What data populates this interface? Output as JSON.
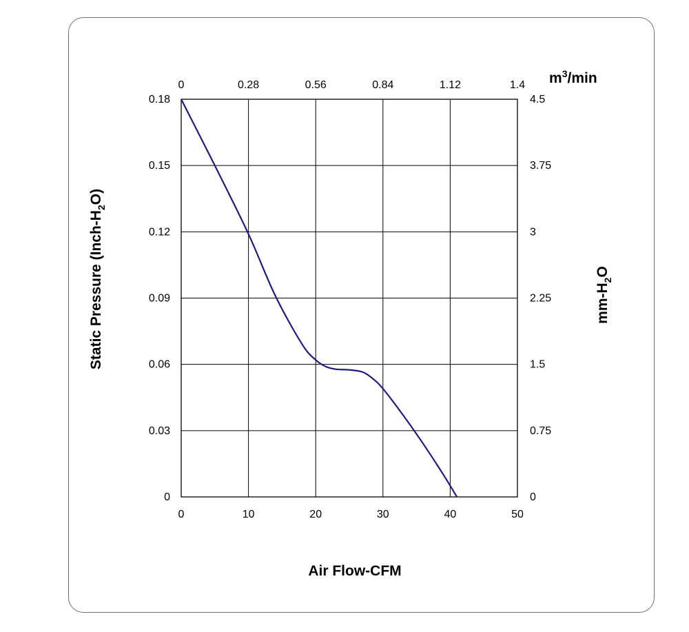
{
  "chart_data": {
    "type": "line",
    "xlabel": "Air Flow-CFM",
    "ylabel": "Static Pressure (Inch-H2O)",
    "top_axis_label": "m³/min",
    "right_axis_label": "mm-H2O",
    "xlim": [
      0,
      50
    ],
    "ylim": [
      0,
      0.18
    ],
    "x_ticks": [
      "0",
      "10",
      "20",
      "30",
      "40",
      "50"
    ],
    "y_ticks": [
      "0",
      "0.03",
      "0.06",
      "0.09",
      "0.12",
      "0.15",
      "0.18"
    ],
    "top_ticks": [
      "0",
      "0.28",
      "0.56",
      "0.84",
      "1.12",
      "1.4"
    ],
    "right_ticks": [
      "0",
      "0.75",
      "1.5",
      "2.25",
      "3",
      "3.75",
      "4.5"
    ],
    "grid": true,
    "line_color": "#1c1c7a",
    "series": [
      {
        "x": [
          0,
          5,
          10,
          14,
          18,
          20,
          21.5,
          23,
          25,
          27,
          28.5,
          30,
          33,
          36,
          39,
          41
        ],
        "y": [
          0.18,
          0.15,
          0.119,
          0.091,
          0.069,
          0.062,
          0.059,
          0.0578,
          0.0575,
          0.0565,
          0.0535,
          0.049,
          0.037,
          0.024,
          0.01,
          0
        ]
      }
    ]
  }
}
